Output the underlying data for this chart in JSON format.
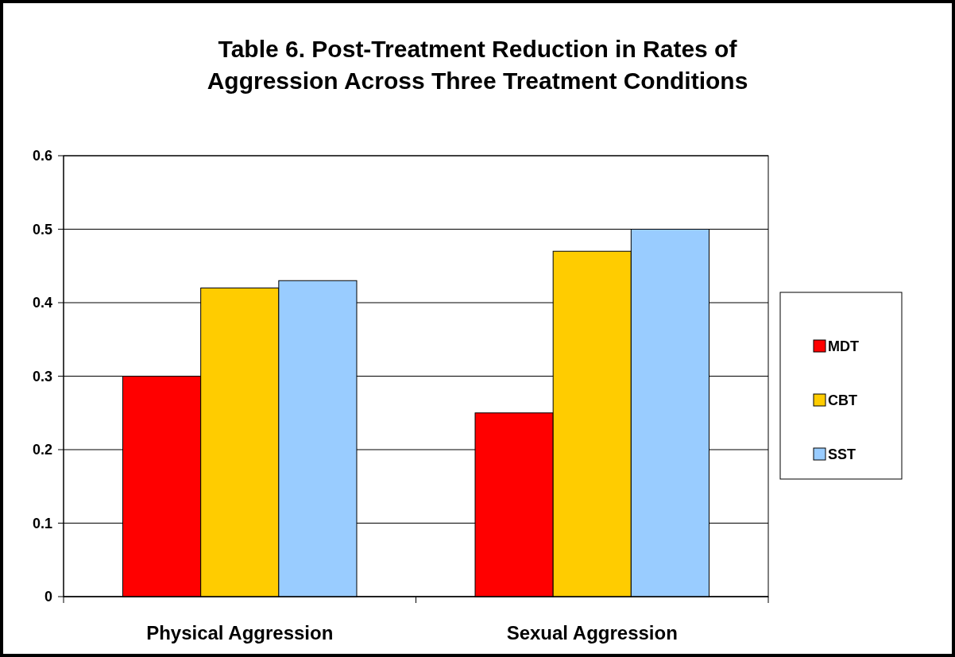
{
  "chart_data": {
    "type": "bar",
    "title": "Table 6. Post-Treatment Reduction in Rates of Aggression Across Three Treatment Conditions",
    "categories": [
      "Physical Aggression",
      "Sexual Aggression"
    ],
    "series": [
      {
        "name": "MDT",
        "color": "#ff0000",
        "values": [
          0.3,
          0.25
        ]
      },
      {
        "name": "CBT",
        "color": "#ffcc00",
        "values": [
          0.42,
          0.47
        ]
      },
      {
        "name": "SST",
        "color": "#99ccff",
        "values": [
          0.43,
          0.5
        ]
      }
    ],
    "ylim": [
      0,
      0.6
    ],
    "yticks": [
      0,
      0.1,
      0.2,
      0.3,
      0.4,
      0.5,
      0.6
    ],
    "grid": "y",
    "legend": "right"
  }
}
